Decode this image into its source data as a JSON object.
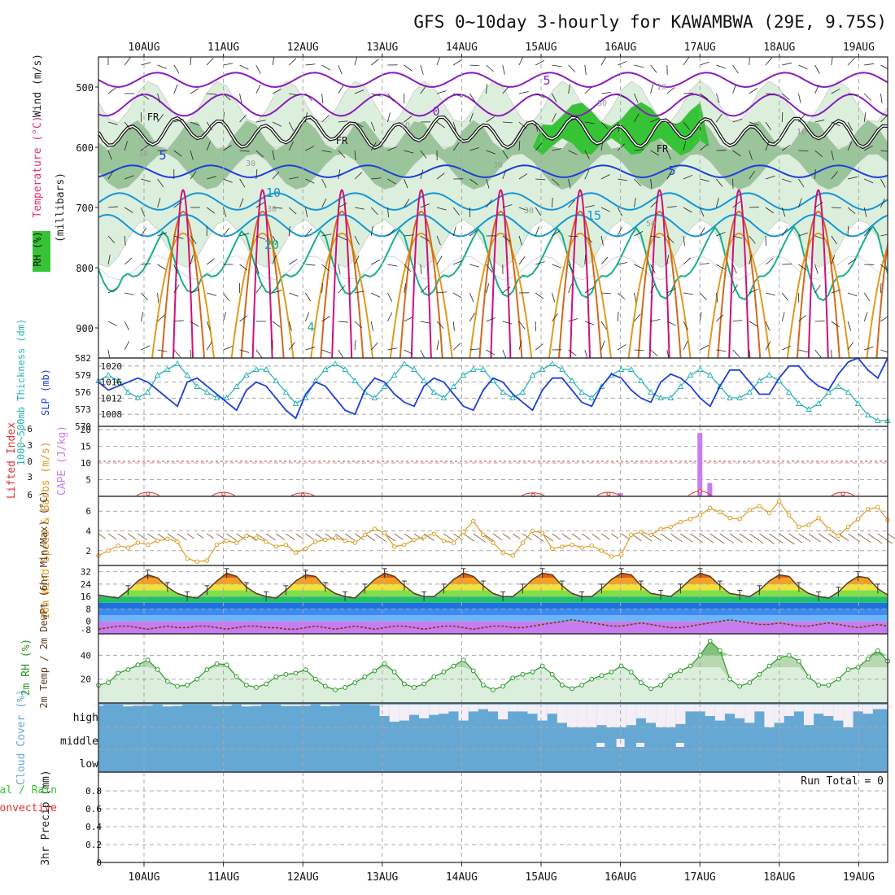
{
  "title": "GFS 0~10day 3-hourly for KAWAMBWA (29E, 9.75S)",
  "dates": [
    "10AUG",
    "11AUG",
    "12AUG",
    "13AUG",
    "14AUG",
    "15AUG",
    "16AUG",
    "17AUG",
    "18AUG",
    "19AUG"
  ],
  "colors": {
    "purple": "#8a1cc0",
    "blue": "#1f3fd8",
    "cyan": "#1496d6",
    "teal": "#17b08e",
    "orange": "#e09a20",
    "darkorange": "#d2691e",
    "magenta": "#d0107a",
    "green": "#36c436",
    "lightgreen": "#dcefdc",
    "midgreen": "#9ac59a",
    "cloud": "#66a8d4",
    "cape": "#c77cf0",
    "li": "#e03030",
    "slp": "#1f3fd8",
    "thick": "#2cb3b3",
    "wind": "#e09a20",
    "rh": "#2a9a2a"
  },
  "chart_data": [
    {
      "type": "heatmap",
      "panel": "upper-air",
      "ylabel_parts": [
        "RH (%)",
        "Temperature (°C)",
        "Wind (m/s)"
      ],
      "ylabel_unit": "(millibars)",
      "yticks": [
        500,
        600,
        700,
        800,
        900
      ],
      "ylim": [
        950,
        450
      ],
      "contour_labels": [
        "5",
        "0",
        "5",
        "10",
        "20",
        "15",
        "5",
        "4",
        "FR",
        "FR",
        "FR",
        "10",
        "10",
        "30",
        "30",
        "30",
        "30",
        "50",
        "50",
        "10",
        "10"
      ],
      "freezing_level_label": "FR"
    },
    {
      "type": "line",
      "panel": "slp-thickness",
      "ylabel_left": "1000~500mb Thickness (dm)",
      "ylabel_right": "SLP (mb)",
      "thickness_ticks": [
        570,
        573,
        576,
        579,
        582
      ],
      "slp_ticks": [
        1008,
        1012,
        1016,
        1020
      ],
      "ylim_thickness": [
        570,
        582
      ],
      "ylim_slp": [
        1005,
        1022
      ],
      "series": [
        {
          "name": "SLP (mb)",
          "values": [
            1016,
            1014,
            1015,
            1016,
            1017,
            1016,
            1014,
            1012,
            1010,
            1016,
            1017,
            1015,
            1013,
            1011,
            1009,
            1014,
            1016,
            1015,
            1012,
            1009,
            1007,
            1013,
            1016,
            1015,
            1012,
            1009,
            1008,
            1014,
            1017,
            1016,
            1013,
            1011,
            1010,
            1015,
            1017,
            1016,
            1013,
            1010,
            1009,
            1014,
            1017,
            1016,
            1013,
            1011,
            1009,
            1014,
            1017,
            1017,
            1014,
            1011,
            1010,
            1015,
            1018,
            1017,
            1014,
            1012,
            1011,
            1016,
            1018,
            1017,
            1015,
            1012,
            1010,
            1015,
            1019,
            1019,
            1016,
            1013,
            1013,
            1017,
            1020,
            1020,
            1017,
            1015,
            1014,
            1018,
            1021,
            1022,
            1019,
            1017,
            1022
          ]
        },
        {
          "name": "Thickness (dm)",
          "values": [
            578,
            579,
            578,
            576,
            575,
            576,
            579,
            580,
            581,
            579,
            577,
            576,
            575,
            575,
            577,
            579,
            580,
            580,
            578,
            576,
            574,
            575,
            578,
            580,
            581,
            580,
            578,
            576,
            575,
            577,
            579,
            581,
            580,
            578,
            576,
            575,
            577,
            579,
            580,
            580,
            578,
            576,
            575,
            576,
            579,
            580,
            581,
            580,
            578,
            576,
            575,
            577,
            579,
            580,
            580,
            578,
            576,
            575,
            575,
            577,
            579,
            580,
            579,
            577,
            575,
            575,
            576,
            578,
            579,
            578,
            576,
            574,
            573,
            574,
            576,
            577,
            576,
            574,
            572,
            571,
            571
          ]
        }
      ]
    },
    {
      "type": "bar",
      "panel": "cape-li",
      "ylabel_left": "Lifted Index",
      "ylabel_right": "CAPE (J/kg)",
      "li_ticks": [
        "6",
        "3",
        "0",
        "-3",
        "-6"
      ],
      "cape_ticks": [
        5,
        10,
        15,
        20
      ],
      "ylim_cape": [
        0,
        21
      ],
      "cape_bars": [
        {
          "day": 6.0,
          "value": 1
        },
        {
          "day": 7.0,
          "value": 19
        },
        {
          "day": 7.125,
          "value": 4
        }
      ],
      "li_points": [
        {
          "day": 0.05,
          "value": 5
        },
        {
          "day": 1.0,
          "value": 5
        },
        {
          "day": 2.0,
          "value": 5.5
        },
        {
          "day": 4.9,
          "value": 5.5
        },
        {
          "day": 5.85,
          "value": 5
        },
        {
          "day": 7.0,
          "value": 4
        },
        {
          "day": 8.8,
          "value": 5
        }
      ]
    },
    {
      "type": "line",
      "panel": "wind10m",
      "ylabel": "10m Wind Speed & Barbs (m/s)",
      "yticks": [
        2,
        4,
        6
      ],
      "ylim": [
        0.5,
        7.5
      ],
      "series": [
        {
          "name": "10m Wind Speed",
          "values": [
            1.5,
            2.0,
            2.5,
            2.3,
            2.8,
            2.6,
            3.0,
            3.2,
            2.9,
            1.2,
            0.9,
            1.0,
            2.6,
            3.0,
            2.8,
            3.5,
            3.3,
            2.9,
            2.4,
            2.6,
            1.8,
            2.2,
            2.9,
            3.1,
            3.3,
            3.0,
            2.8,
            3.6,
            4.2,
            3.8,
            2.4,
            2.6,
            3.1,
            3.4,
            3.7,
            3.0,
            2.8,
            3.9,
            5.0,
            3.6,
            2.8,
            1.8,
            1.5,
            2.8,
            4.0,
            3.8,
            2.2,
            2.4,
            2.6,
            2.3,
            2.5,
            2.0,
            1.4,
            1.6,
            3.6,
            3.9,
            3.6,
            4.2,
            4.4,
            4.9,
            5.2,
            5.6,
            6.3,
            5.9,
            5.3,
            5.2,
            6.1,
            6.5,
            5.8,
            7.0,
            5.6,
            4.4,
            4.6,
            5.3,
            4.2,
            3.5,
            4.4,
            5.2,
            6.2,
            6.4,
            5.1
          ]
        }
      ]
    },
    {
      "type": "area",
      "panel": "temp2m",
      "ylabel": "2m Temp / 2m DewPt (6hr Min/Max) (°C)",
      "yticks": [
        0,
        8,
        16,
        24,
        32
      ],
      "ylim": [
        -8,
        36
      ],
      "bottom_tick_label": "-8",
      "series": [
        {
          "name": "2m Temp",
          "values": [
            17,
            16,
            15,
            20,
            26,
            30,
            28,
            22,
            18,
            16,
            15,
            20,
            26,
            31,
            29,
            22,
            18,
            16,
            15,
            20,
            26,
            30,
            29,
            22,
            18,
            16,
            15,
            21,
            27,
            31,
            29,
            23,
            18,
            16,
            16,
            21,
            27,
            31,
            29,
            23,
            18,
            16,
            16,
            21,
            27,
            31,
            30,
            23,
            18,
            16,
            16,
            21,
            27,
            31,
            30,
            23,
            18,
            17,
            16,
            21,
            27,
            31,
            29,
            23,
            18,
            17,
            16,
            20,
            26,
            30,
            29,
            22,
            18,
            16,
            15,
            19,
            25,
            29,
            28,
            21,
            17
          ]
        },
        {
          "name": "2m DewPt",
          "values": [
            -5,
            -4,
            -3,
            -3,
            -4,
            -5,
            -4,
            -3,
            -4,
            -4,
            -3,
            -3,
            -4,
            -5,
            -4,
            -3,
            -3,
            -4,
            -4,
            -5,
            -5,
            -4,
            -3,
            -4,
            -5,
            -4,
            -3,
            -4,
            -5,
            -4,
            -3,
            -3,
            -4,
            -5,
            -4,
            -3,
            -3,
            -4,
            -5,
            -4,
            -3,
            -3,
            -4,
            -4,
            -3,
            -2,
            -1,
            0,
            1,
            0,
            -1,
            -2,
            -3,
            -3,
            -2,
            -1,
            -2,
            -3,
            -4,
            -4,
            -3,
            -2,
            -1,
            0,
            1,
            0,
            -1,
            -2,
            -2,
            -1,
            -2,
            -3,
            -3,
            -2,
            -1,
            -2,
            -3,
            -4,
            -3,
            -2,
            -3
          ]
        }
      ]
    },
    {
      "type": "area",
      "panel": "rh2m",
      "ylabel": "2m RH (%)",
      "yticks": [
        20,
        40
      ],
      "ylim": [
        0,
        58
      ],
      "series": [
        {
          "name": "2m RH",
          "values": [
            15,
            17,
            25,
            28,
            32,
            36,
            28,
            18,
            14,
            15,
            20,
            28,
            33,
            32,
            22,
            15,
            13,
            16,
            22,
            24,
            25,
            28,
            20,
            14,
            11,
            13,
            17,
            22,
            27,
            33,
            26,
            16,
            13,
            16,
            22,
            26,
            31,
            36,
            27,
            15,
            11,
            14,
            21,
            24,
            26,
            31,
            24,
            15,
            12,
            15,
            20,
            23,
            26,
            31,
            26,
            17,
            12,
            15,
            23,
            27,
            31,
            40,
            52,
            44,
            20,
            14,
            17,
            24,
            31,
            38,
            40,
            35,
            22,
            15,
            15,
            20,
            28,
            30,
            37,
            44,
            35
          ]
        }
      ]
    },
    {
      "type": "bar",
      "panel": "cloud",
      "ylabel": "Cloud Cover (%)",
      "levels": [
        "high",
        "middle",
        "low"
      ],
      "high_cover": [
        95,
        100,
        100,
        92,
        95,
        96,
        100,
        92,
        94,
        100,
        100,
        100,
        94,
        95,
        100,
        92,
        94,
        100,
        100,
        94,
        94,
        95,
        100,
        93,
        95,
        100,
        100,
        100,
        96,
        50,
        25,
        30,
        55,
        40,
        55,
        60,
        70,
        30,
        70,
        80,
        70,
        35,
        70,
        70,
        60,
        30,
        60,
        20,
        0,
        0,
        0,
        10,
        0,
        0,
        10,
        40,
        20,
        0,
        0,
        15,
        70,
        70,
        50,
        30,
        60,
        40,
        20,
        70,
        0,
        20,
        50,
        70,
        10,
        60,
        50,
        30,
        0,
        70,
        60,
        80,
        80
      ],
      "middle_marks": [
        {
          "day": 5.75,
          "value": 10
        },
        {
          "day": 6.0,
          "value": 20
        },
        {
          "day": 6.25,
          "value": 10
        },
        {
          "day": 6.75,
          "value": 10
        }
      ]
    },
    {
      "type": "bar",
      "panel": "precip",
      "ylabel_left": "Total / Rain Convective",
      "ylabel_right": "3hr Precip (mm)",
      "yticks": [
        "0",
        "0.2",
        "0.4",
        "0.6",
        "0.8"
      ],
      "ylim": [
        0,
        1
      ],
      "run_total_label": "Run Total = 0",
      "values": []
    }
  ]
}
